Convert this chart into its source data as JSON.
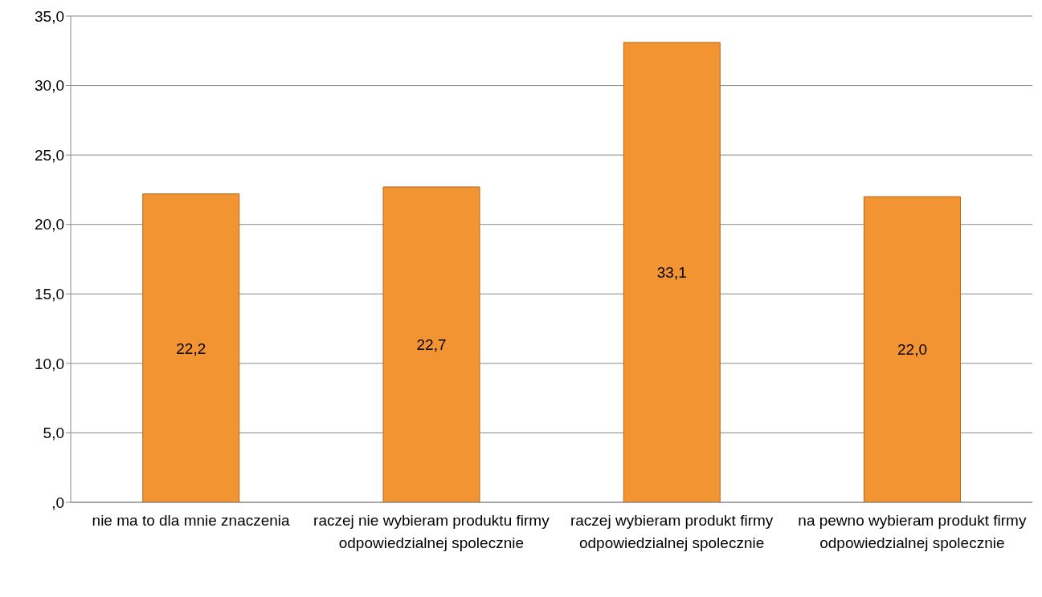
{
  "chart_data": {
    "type": "bar",
    "categories": [
      "nie ma to dla mnie znaczenia",
      "raczej nie wybieram produktu firmy odpowiedzialnej spolecznie",
      "raczej wybieram produkt firmy odpowiedzialnej spolecznie",
      "na pewno wybieram produkt firmy odpowiedzialnej spolecznie"
    ],
    "values": [
      22.2,
      22.7,
      33.1,
      22.0
    ],
    "value_labels": [
      "22,2",
      "22,7",
      "33,1",
      "22,0"
    ],
    "color": "#f29431",
    "ylim": [
      0,
      35
    ],
    "yticks": [
      {
        "value": 0,
        "label": ",0"
      },
      {
        "value": 5,
        "label": "5,0"
      },
      {
        "value": 10,
        "label": "10,0"
      },
      {
        "value": 15,
        "label": "15,0"
      },
      {
        "value": 20,
        "label": "20,0"
      },
      {
        "value": 25,
        "label": "25,0"
      },
      {
        "value": 30,
        "label": "30,0"
      },
      {
        "value": 35,
        "label": "35,0"
      }
    ],
    "grid": "y"
  }
}
